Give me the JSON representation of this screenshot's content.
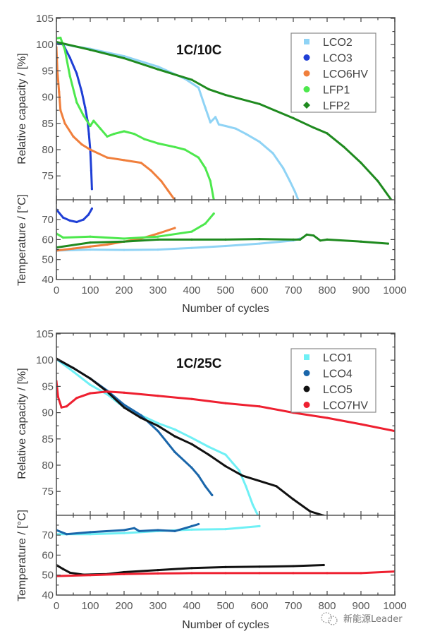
{
  "watermark": "新能源Leader",
  "chart_data": [
    {
      "type": "scatter",
      "title": "1C/10C",
      "xlabel": "Number of cycles",
      "ylabel_capacity": "Relative capacity / [%]",
      "ylabel_temperature": "Temperature / [°C]",
      "xlim": [
        0,
        1000
      ],
      "ylim_capacity": [
        70.3,
        105
      ],
      "ylim_temperature": [
        40,
        80
      ],
      "x_ticks": [
        0,
        100,
        200,
        300,
        400,
        500,
        600,
        700,
        800,
        900,
        1000
      ],
      "y_ticks_capacity": [
        75,
        80,
        85,
        90,
        95,
        100,
        105
      ],
      "y_ticks_temperature": [
        40,
        50,
        60,
        70
      ],
      "legend_position": "top-right",
      "series": [
        {
          "name": "LCO2",
          "color": "#8fd3f5",
          "marker": "square",
          "capacity": [
            [
              0,
              100.4
            ],
            [
              50,
              99.7
            ],
            [
              100,
              99.2
            ],
            [
              200,
              97.8
            ],
            [
              300,
              95.8
            ],
            [
              380,
              93.5
            ],
            [
              420,
              91.8
            ],
            [
              440,
              88
            ],
            [
              455,
              85.2
            ],
            [
              470,
              86.2
            ],
            [
              480,
              84.8
            ],
            [
              500,
              84.5
            ],
            [
              530,
              84
            ],
            [
              560,
              83
            ],
            [
              600,
              81.5
            ],
            [
              640,
              79.3
            ],
            [
              670,
              76.5
            ],
            [
              690,
              74
            ],
            [
              705,
              72
            ],
            [
              715,
              70.4
            ]
          ],
          "temperature": [
            [
              0,
              54.5
            ],
            [
              100,
              55
            ],
            [
              200,
              54.8
            ],
            [
              300,
              55
            ],
            [
              400,
              55.8
            ],
            [
              500,
              56.8
            ],
            [
              600,
              58
            ],
            [
              700,
              59.5
            ],
            [
              720,
              60.5
            ]
          ]
        },
        {
          "name": "LCO3",
          "color": "#1f3fd6",
          "marker": "circle",
          "capacity": [
            [
              0,
              100.4
            ],
            [
              20,
              100
            ],
            [
              40,
              97.5
            ],
            [
              60,
              94.5
            ],
            [
              75,
              91
            ],
            [
              85,
              88
            ],
            [
              92,
              85.5
            ],
            [
              96,
              83
            ],
            [
              100,
              80
            ],
            [
              103,
              76
            ],
            [
              105,
              72.5
            ]
          ],
          "temperature": [
            [
              0,
              75
            ],
            [
              20,
              71
            ],
            [
              40,
              69.5
            ],
            [
              60,
              68.8
            ],
            [
              80,
              70
            ],
            [
              95,
              72.5
            ],
            [
              105,
              75.5
            ]
          ]
        },
        {
          "name": "LCO6HV",
          "color": "#f07f3c",
          "marker": "circle",
          "capacity": [
            [
              0,
              99.5
            ],
            [
              3,
              95
            ],
            [
              8,
              91
            ],
            [
              12,
              87.5
            ],
            [
              25,
              85
            ],
            [
              50,
              82.5
            ],
            [
              75,
              81
            ],
            [
              100,
              80
            ],
            [
              150,
              78.5
            ],
            [
              200,
              78
            ],
            [
              250,
              77.5
            ],
            [
              280,
              76
            ],
            [
              310,
              74
            ],
            [
              330,
              72.2
            ],
            [
              350,
              70.4
            ]
          ],
          "temperature": [
            [
              0,
              54.5
            ],
            [
              50,
              55.5
            ],
            [
              100,
              56.5
            ],
            [
              150,
              57.5
            ],
            [
              200,
              59
            ],
            [
              250,
              60.5
            ],
            [
              300,
              63
            ],
            [
              350,
              65.8
            ]
          ]
        },
        {
          "name": "LFP1",
          "color": "#4de84d",
          "marker": "circle",
          "capacity": [
            [
              0,
              101.2
            ],
            [
              12,
              101.3
            ],
            [
              25,
              99
            ],
            [
              40,
              94
            ],
            [
              60,
              89
            ],
            [
              80,
              86.5
            ],
            [
              100,
              84.5
            ],
            [
              110,
              85.5
            ],
            [
              130,
              84
            ],
            [
              150,
              82.5
            ],
            [
              170,
              83
            ],
            [
              200,
              83.5
            ],
            [
              230,
              83
            ],
            [
              260,
              82
            ],
            [
              300,
              81.2
            ],
            [
              350,
              80.5
            ],
            [
              380,
              80
            ],
            [
              420,
              78.5
            ],
            [
              440,
              76.5
            ],
            [
              455,
              74
            ],
            [
              465,
              70.5
            ]
          ],
          "temperature": [
            [
              0,
              63
            ],
            [
              20,
              61
            ],
            [
              100,
              61.5
            ],
            [
              200,
              60.5
            ],
            [
              300,
              61.5
            ],
            [
              400,
              64
            ],
            [
              440,
              68
            ],
            [
              465,
              73
            ]
          ]
        },
        {
          "name": "LFP2",
          "color": "#1f8a1f",
          "marker": "diamond",
          "capacity": [
            [
              0,
              100.5
            ],
            [
              100,
              99
            ],
            [
              200,
              97.4
            ],
            [
              300,
              95.3
            ],
            [
              400,
              93.3
            ],
            [
              450,
              91.5
            ],
            [
              500,
              90.4
            ],
            [
              600,
              88.7
            ],
            [
              700,
              86
            ],
            [
              760,
              84.2
            ],
            [
              800,
              83.1
            ],
            [
              850,
              80.5
            ],
            [
              900,
              77.5
            ],
            [
              950,
              74
            ],
            [
              990,
              70.4
            ]
          ],
          "temperature": [
            [
              0,
              56
            ],
            [
              100,
              58.5
            ],
            [
              200,
              59
            ],
            [
              300,
              60
            ],
            [
              400,
              60
            ],
            [
              500,
              60
            ],
            [
              600,
              60.3
            ],
            [
              700,
              60
            ],
            [
              720,
              60
            ],
            [
              740,
              62.5
            ],
            [
              760,
              62
            ],
            [
              780,
              59.5
            ],
            [
              800,
              60
            ],
            [
              900,
              59
            ],
            [
              980,
              58
            ]
          ]
        }
      ]
    },
    {
      "type": "scatter",
      "title": "1C/25C",
      "xlabel": "Number of cycles",
      "ylabel_capacity": "Relative capacity / [%]",
      "ylabel_temperature": "Temperature / [°C]",
      "xlim": [
        0,
        1000
      ],
      "ylim_capacity": [
        70.3,
        105
      ],
      "ylim_temperature": [
        40,
        80
      ],
      "x_ticks": [
        0,
        100,
        200,
        300,
        400,
        500,
        600,
        700,
        800,
        900,
        1000
      ],
      "y_ticks_capacity": [
        75,
        80,
        85,
        90,
        95,
        100,
        105
      ],
      "y_ticks_temperature": [
        40,
        50,
        60,
        70
      ],
      "legend_position": "top-right",
      "series": [
        {
          "name": "LCO1",
          "color": "#6ff0f5",
          "marker": "square",
          "capacity": [
            [
              0,
              100.2
            ],
            [
              50,
              97.8
            ],
            [
              100,
              95.3
            ],
            [
              150,
              93.5
            ],
            [
              200,
              91
            ],
            [
              250,
              89.5
            ],
            [
              300,
              88
            ],
            [
              350,
              86.8
            ],
            [
              400,
              85.2
            ],
            [
              450,
              83.5
            ],
            [
              500,
              82
            ],
            [
              520,
              80.5
            ],
            [
              540,
              79
            ],
            [
              560,
              76
            ],
            [
              580,
              72.5
            ],
            [
              595,
              70.5
            ]
          ],
          "temperature": [
            [
              0,
              70.5
            ],
            [
              100,
              70.5
            ],
            [
              200,
              71
            ],
            [
              300,
              72
            ],
            [
              400,
              72.8
            ],
            [
              500,
              73
            ],
            [
              600,
              74.5
            ]
          ]
        },
        {
          "name": "LCO4",
          "color": "#1a66aa",
          "marker": "circle",
          "capacity": [
            [
              0,
              100.2
            ],
            [
              50,
              98.5
            ],
            [
              100,
              96.5
            ],
            [
              150,
              94.2
            ],
            [
              200,
              91.5
            ],
            [
              250,
              89.5
            ],
            [
              300,
              86.5
            ],
            [
              350,
              82.5
            ],
            [
              400,
              79.5
            ],
            [
              420,
              78
            ],
            [
              440,
              76
            ],
            [
              460,
              74.3
            ]
          ],
          "temperature": [
            [
              0,
              72.5
            ],
            [
              30,
              70.5
            ],
            [
              100,
              71.5
            ],
            [
              200,
              72.5
            ],
            [
              230,
              73.5
            ],
            [
              245,
              72
            ],
            [
              300,
              72.5
            ],
            [
              350,
              72
            ],
            [
              400,
              74.5
            ],
            [
              420,
              75.5
            ]
          ]
        },
        {
          "name": "LCO5",
          "color": "#111111",
          "marker": "circle",
          "capacity": [
            [
              0,
              100.3
            ],
            [
              50,
              98.5
            ],
            [
              100,
              96.5
            ],
            [
              150,
              94
            ],
            [
              200,
              91
            ],
            [
              250,
              89
            ],
            [
              300,
              87.5
            ],
            [
              350,
              85.5
            ],
            [
              400,
              84
            ],
            [
              450,
              82
            ],
            [
              500,
              79.8
            ],
            [
              550,
              78
            ],
            [
              600,
              77
            ],
            [
              650,
              76
            ],
            [
              700,
              73.5
            ],
            [
              750,
              71.2
            ],
            [
              790,
              70.4
            ]
          ],
          "temperature": [
            [
              0,
              55
            ],
            [
              20,
              53
            ],
            [
              40,
              51.2
            ],
            [
              80,
              50.2
            ],
            [
              150,
              50.5
            ],
            [
              200,
              51.5
            ],
            [
              300,
              52.5
            ],
            [
              400,
              53.5
            ],
            [
              500,
              54
            ],
            [
              600,
              54.2
            ],
            [
              700,
              54.5
            ],
            [
              790,
              55
            ]
          ]
        },
        {
          "name": "LCO7HV",
          "color": "#ee2030",
          "marker": "circle",
          "capacity": [
            [
              0,
              96
            ],
            [
              5,
              93
            ],
            [
              15,
              91
            ],
            [
              30,
              91.2
            ],
            [
              60,
              92.8
            ],
            [
              100,
              93.7
            ],
            [
              150,
              94
            ],
            [
              200,
              93.8
            ],
            [
              300,
              93.2
            ],
            [
              400,
              92.6
            ],
            [
              500,
              91.8
            ],
            [
              600,
              91.2
            ],
            [
              700,
              90
            ],
            [
              800,
              89
            ],
            [
              900,
              87.8
            ],
            [
              1000,
              86.5
            ]
          ],
          "temperature": [
            [
              0,
              49.5
            ],
            [
              100,
              50
            ],
            [
              200,
              50.5
            ],
            [
              300,
              50.8
            ],
            [
              400,
              51
            ],
            [
              500,
              51
            ],
            [
              600,
              51
            ],
            [
              700,
              51
            ],
            [
              800,
              51
            ],
            [
              900,
              51
            ],
            [
              1000,
              51.8
            ]
          ]
        }
      ]
    }
  ]
}
